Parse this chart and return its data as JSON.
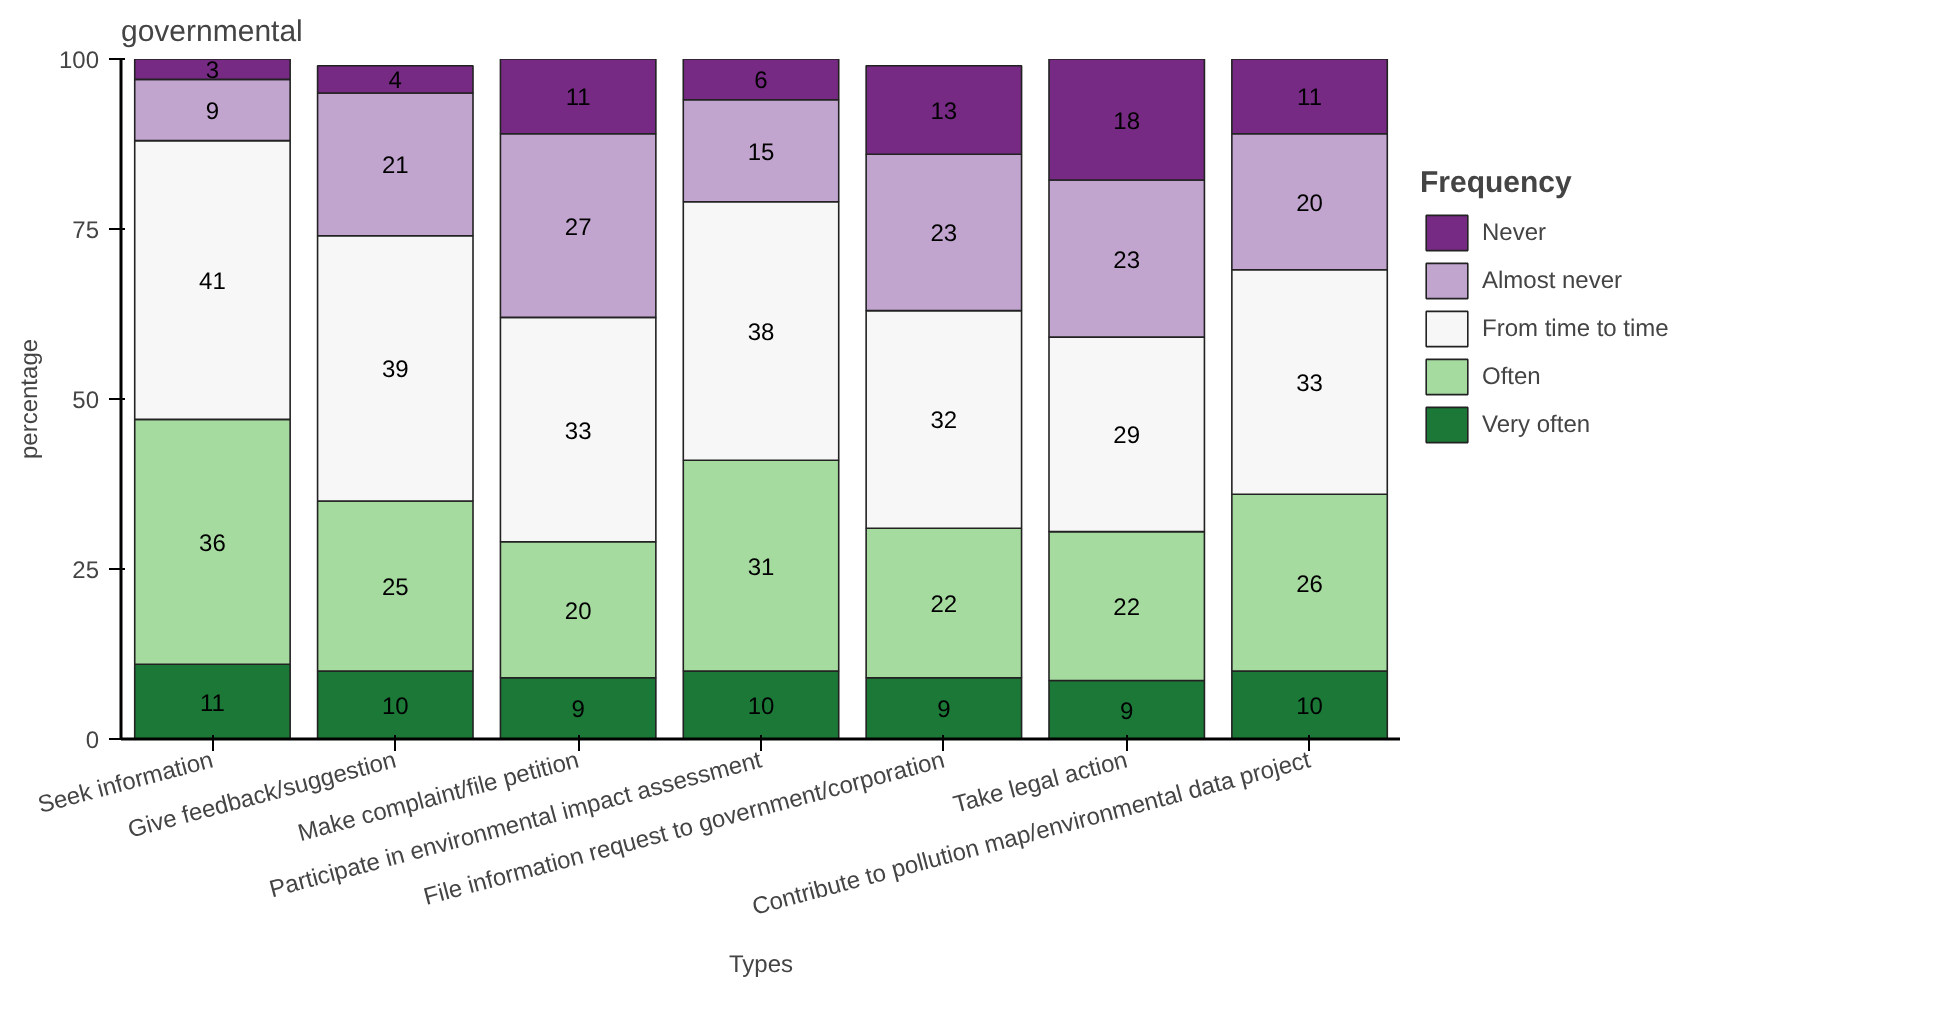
{
  "chart_data": {
    "type": "bar",
    "title": "governmental",
    "xlabel": "Types",
    "ylabel": "percentage",
    "legend_title": "Frequency",
    "categories": [
      "Seek information",
      "Give feedback/suggestion",
      "Make complaint/file petition",
      "Participate in environmental impact assessment",
      "File information request to government/corporation",
      "Take legal action",
      "Contribute to pollution map/environmental data project"
    ],
    "stacked": true,
    "legend": "right",
    "ylim": [
      0,
      100
    ],
    "yticks": [
      0,
      25,
      50,
      75,
      100
    ],
    "series": [
      {
        "name": "Very often",
        "color": "#1b7837",
        "values": [
          11,
          10,
          9,
          10,
          9,
          8.6,
          10
        ],
        "value_labels": [
          "11",
          "10",
          "9",
          "10",
          "9",
          "9",
          "10"
        ]
      },
      {
        "name": "Often",
        "color": "#a6dba0",
        "values": [
          36,
          25,
          20,
          31,
          22,
          21.9,
          26
        ],
        "value_labels": [
          "36",
          "25",
          "20",
          "31",
          "22",
          "22",
          "26"
        ]
      },
      {
        "name": "From time to time",
        "color": "#f7f7f7",
        "values": [
          41,
          39,
          33,
          38,
          32,
          28.6,
          33
        ],
        "value_labels": [
          "41",
          "39",
          "33",
          "38",
          "32",
          "29",
          "33"
        ]
      },
      {
        "name": "Almost never",
        "color": "#c2a5cf",
        "values": [
          9,
          21,
          27,
          15,
          23,
          23.1,
          20
        ],
        "value_labels": [
          "9",
          "21",
          "27",
          "15",
          "23",
          "23",
          "20"
        ]
      },
      {
        "name": "Never",
        "color": "#762a83",
        "values": [
          3,
          4,
          11,
          6,
          13,
          17.8,
          11
        ],
        "value_labels": [
          "3",
          "4",
          "11",
          "6",
          "13",
          "18",
          "11"
        ]
      }
    ]
  }
}
